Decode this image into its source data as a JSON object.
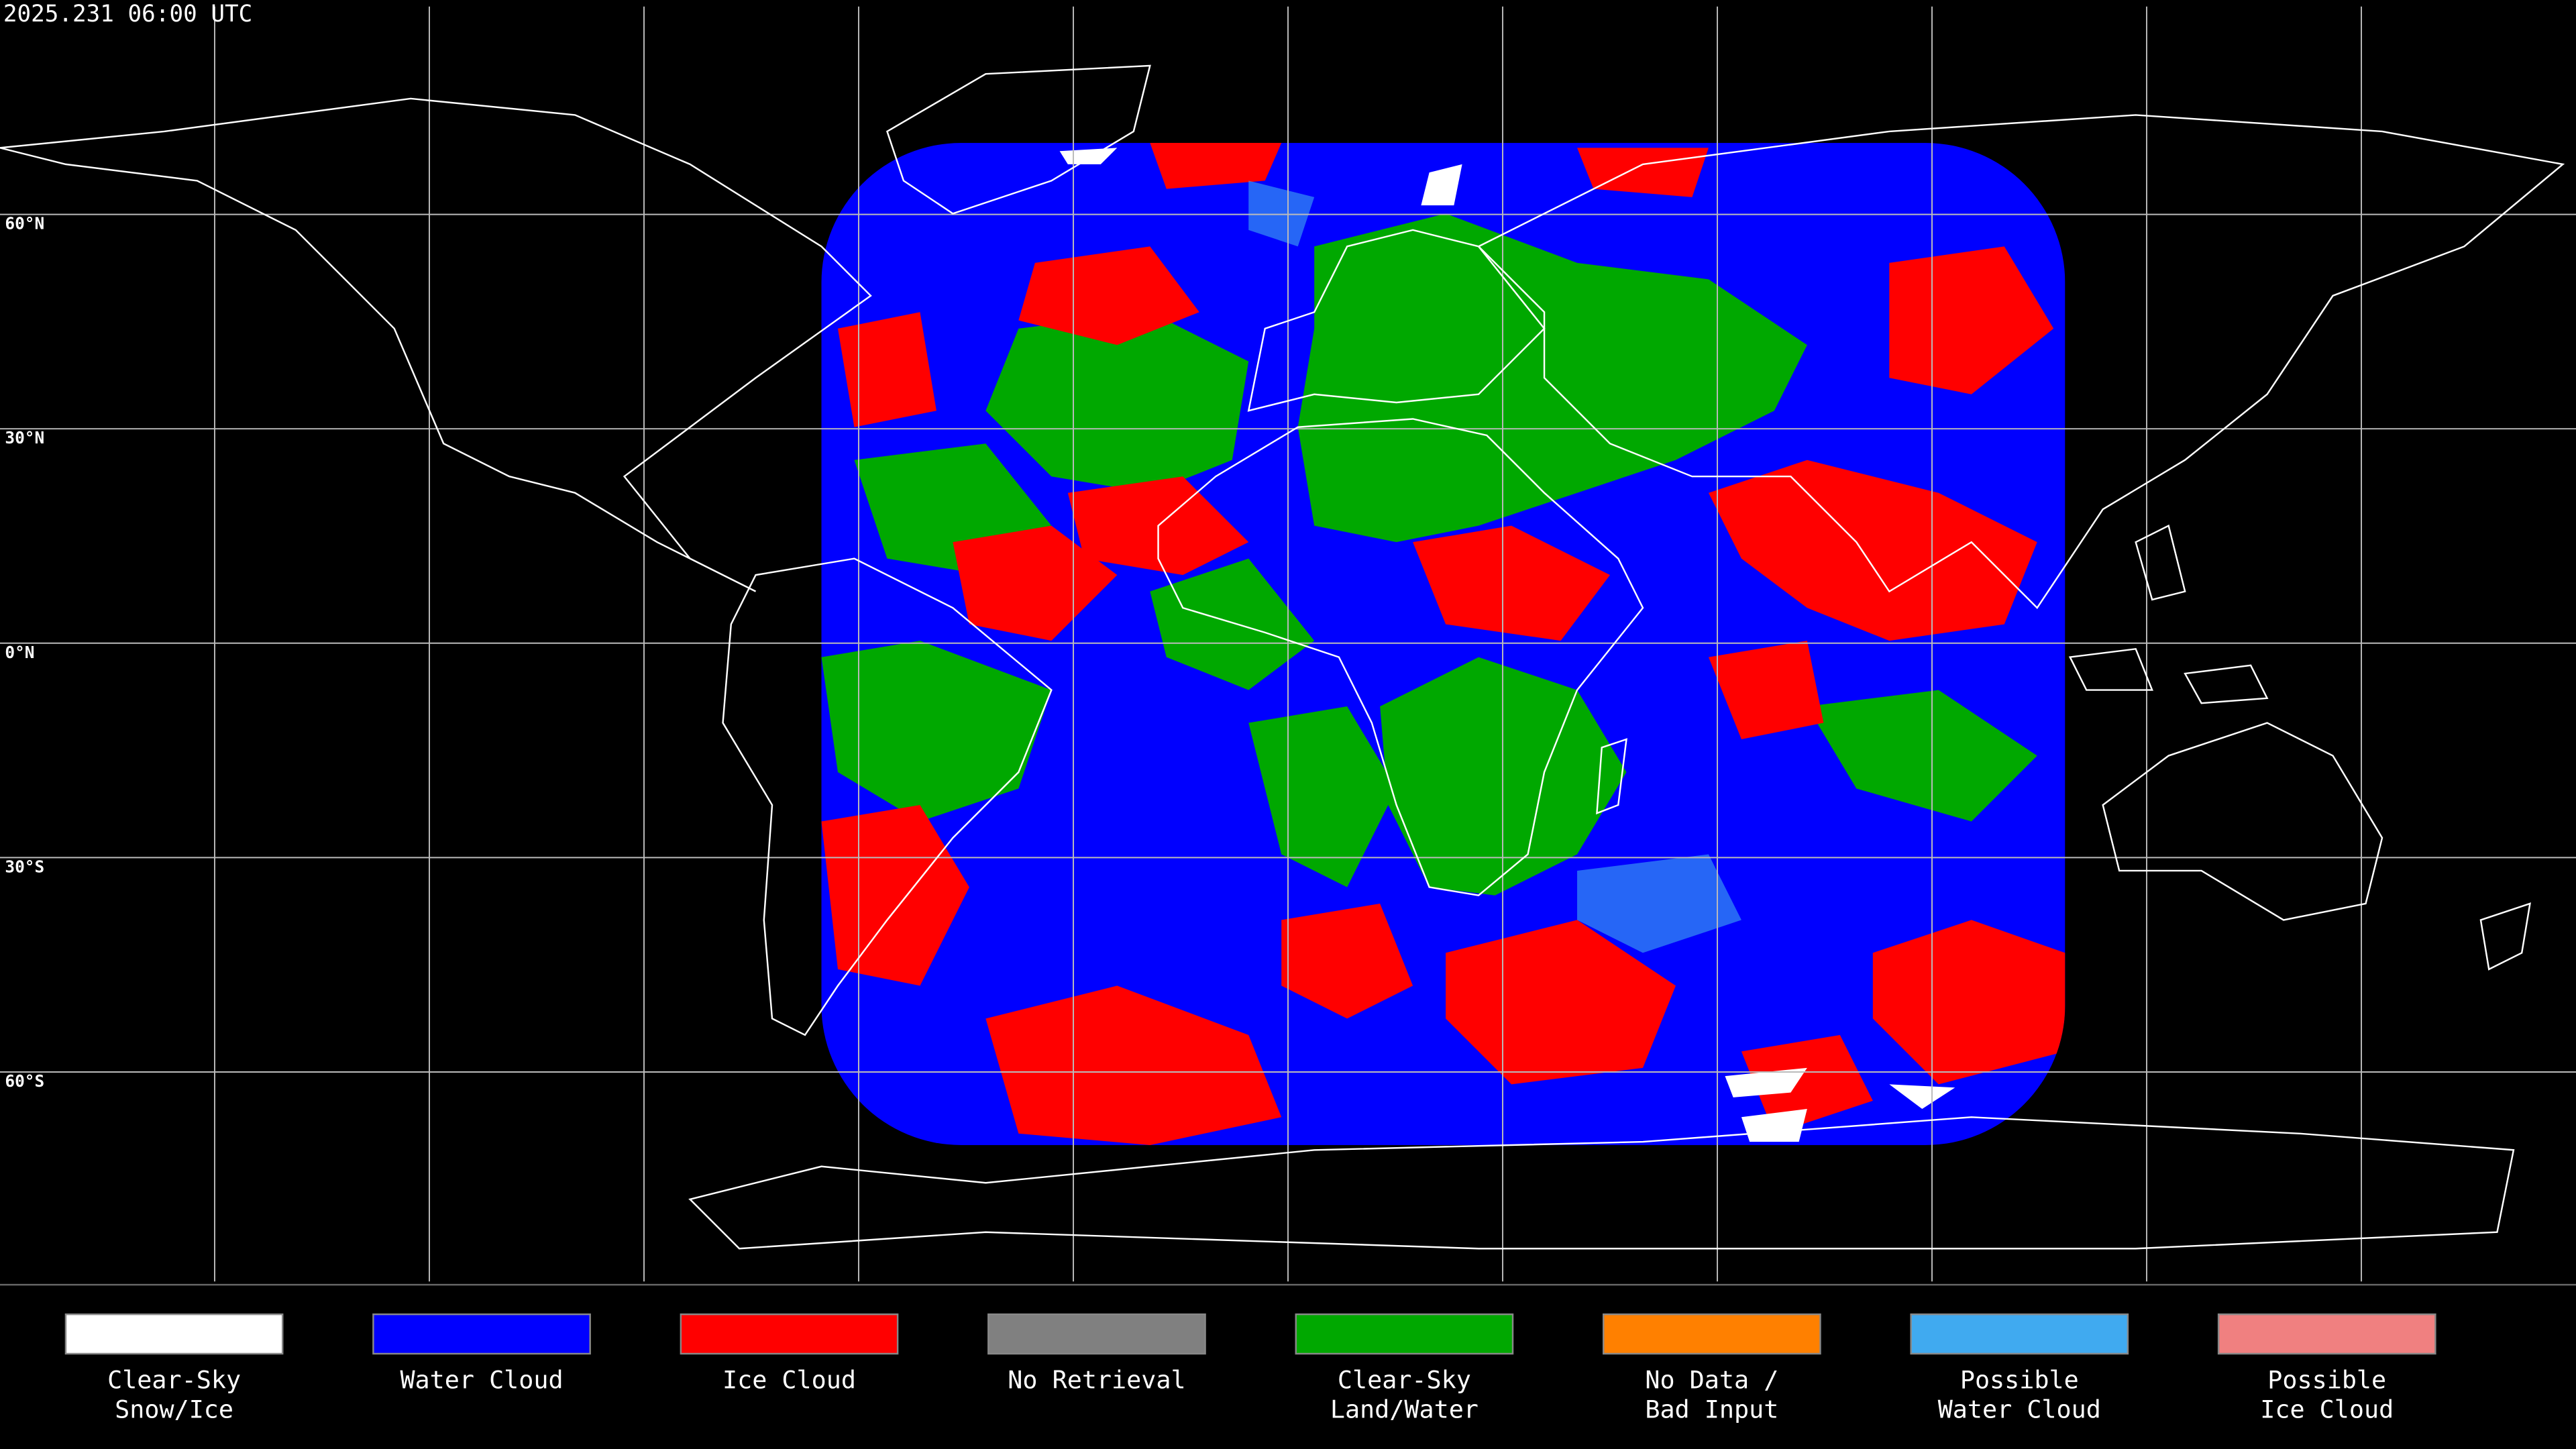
{
  "timestamp": "2025.231 06:00 UTC",
  "latitude_labels": [
    "60°N",
    "30°N",
    "0°N",
    "30°S",
    "60°S"
  ],
  "legend": [
    {
      "label": [
        "Clear-Sky",
        "Snow/Ice"
      ],
      "color": "#ffffff"
    },
    {
      "label": [
        "Water Cloud"
      ],
      "color": "#0000ff"
    },
    {
      "label": [
        "Ice Cloud"
      ],
      "color": "#ff0000"
    },
    {
      "label": [
        "No Retrieval"
      ],
      "color": "#808080"
    },
    {
      "label": [
        "Clear-Sky",
        "Land/Water"
      ],
      "color": "#00a800"
    },
    {
      "label": [
        "No Data /",
        "Bad Input"
      ],
      "color": "#ff8000"
    },
    {
      "label": [
        "Possible",
        "Water Cloud"
      ],
      "color": "#40aaf0"
    },
    {
      "label": [
        "Possible",
        "Ice Cloud"
      ],
      "color": "#f08080"
    }
  ]
}
